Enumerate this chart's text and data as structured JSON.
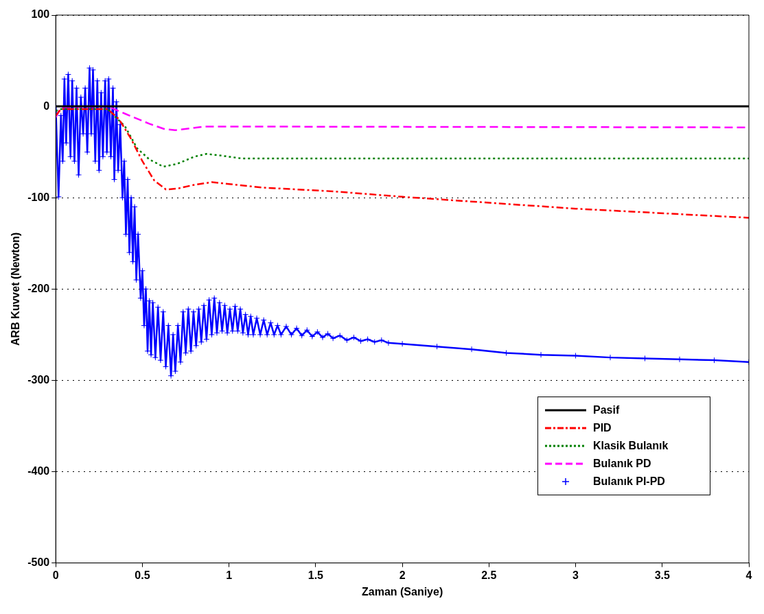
{
  "chart_data": {
    "type": "line",
    "xlabel": "Zaman (Saniye)",
    "ylabel": "ARB Kuvvet (Newton)",
    "xlim": [
      0,
      4
    ],
    "xticks": [
      0,
      0.5,
      1,
      1.5,
      2,
      2.5,
      3,
      3.5,
      4
    ],
    "ylim": [
      -500,
      100
    ],
    "yticks": [
      -500,
      -400,
      -300,
      -200,
      -100,
      0,
      100
    ],
    "grid": "y",
    "legend": "bottom right",
    "series": [
      {
        "name": "Pasif",
        "color": "#000000",
        "line_style": "solid",
        "x": [
          0,
          4
        ],
        "values": [
          0,
          0
        ]
      },
      {
        "name": "PID",
        "color": "#ff0000",
        "line_style": "dashdot",
        "x": [
          0,
          0.03,
          0.3,
          0.365,
          0.433,
          0.5,
          0.568,
          0.636,
          0.703,
          0.797,
          0.9,
          1.0,
          1.2,
          1.6,
          2,
          3,
          4
        ],
        "values": [
          -10,
          -3,
          -3,
          -14,
          -35,
          -60,
          -81,
          -91,
          -90,
          -86,
          -83,
          -85,
          -89,
          -93,
          -99,
          -112,
          -122
        ]
      },
      {
        "name": "Klasik Bulanık",
        "color": "#008000",
        "line_style": "dotted",
        "x": [
          0,
          0.03,
          0.3,
          0.4,
          0.47,
          0.54,
          0.62,
          0.7,
          0.8,
          0.87,
          0.96,
          1.07,
          1.13,
          4
        ],
        "values": [
          -5,
          -3,
          -3,
          -22,
          -46,
          -58,
          -66,
          -63,
          -55,
          -52,
          -54,
          -57,
          -57,
          -57
        ]
      },
      {
        "name": "Bulanık PD",
        "color": "#ff00ff",
        "line_style": "dashed",
        "x": [
          0,
          0.03,
          0.3,
          0.4,
          0.54,
          0.63,
          0.69,
          0.78,
          0.86,
          4
        ],
        "values": [
          -12,
          -1,
          0,
          -8,
          -19,
          -25,
          -26,
          -24,
          -22,
          -23
        ]
      },
      {
        "name": "Bulanık PI-PD",
        "color": "#0000ff",
        "line_style": "solid",
        "marker": "cross",
        "x": [
          0,
          0.016,
          0.03,
          0.04,
          0.05,
          0.06,
          0.072,
          0.085,
          0.095,
          0.108,
          0.12,
          0.132,
          0.145,
          0.158,
          0.17,
          0.182,
          0.195,
          0.205,
          0.215,
          0.228,
          0.24,
          0.25,
          0.262,
          0.272,
          0.285,
          0.295,
          0.305,
          0.318,
          0.33,
          0.338,
          0.35,
          0.36,
          0.372,
          0.385,
          0.395,
          0.405,
          0.415,
          0.425,
          0.435,
          0.445,
          0.455,
          0.465,
          0.475,
          0.49,
          0.5,
          0.51,
          0.52,
          0.53,
          0.54,
          0.55,
          0.56,
          0.575,
          0.59,
          0.605,
          0.62,
          0.635,
          0.65,
          0.665,
          0.677,
          0.69,
          0.705,
          0.72,
          0.735,
          0.75,
          0.765,
          0.78,
          0.795,
          0.81,
          0.825,
          0.84,
          0.855,
          0.87,
          0.885,
          0.9,
          0.915,
          0.93,
          0.945,
          0.96,
          0.975,
          0.99,
          1.005,
          1.02,
          1.035,
          1.05,
          1.065,
          1.08,
          1.095,
          1.11,
          1.125,
          1.14,
          1.16,
          1.18,
          1.2,
          1.22,
          1.24,
          1.26,
          1.28,
          1.3,
          1.33,
          1.36,
          1.39,
          1.42,
          1.45,
          1.48,
          1.51,
          1.54,
          1.57,
          1.6,
          1.64,
          1.68,
          1.72,
          1.76,
          1.8,
          1.84,
          1.88,
          1.92,
          2,
          2.2,
          2.4,
          2.6,
          2.8,
          3,
          3.2,
          3.4,
          3.6,
          3.8,
          4
        ],
        "values": [
          0,
          -99,
          -10,
          -60,
          30,
          -40,
          35,
          -55,
          28,
          -60,
          20,
          -75,
          10,
          -30,
          20,
          -50,
          42,
          -30,
          40,
          -60,
          28,
          -70,
          15,
          -55,
          28,
          -50,
          30,
          -55,
          20,
          -80,
          5,
          -70,
          -20,
          -100,
          -60,
          -140,
          -80,
          -160,
          -100,
          -170,
          -110,
          -190,
          -140,
          -210,
          -180,
          -240,
          -200,
          -268,
          -213,
          -272,
          -215,
          -275,
          -220,
          -278,
          -225,
          -285,
          -240,
          -295,
          -250,
          -290,
          -240,
          -280,
          -225,
          -270,
          -222,
          -268,
          -225,
          -262,
          -222,
          -258,
          -218,
          -255,
          -212,
          -250,
          -210,
          -248,
          -215,
          -246,
          -218,
          -248,
          -222,
          -246,
          -219,
          -246,
          -222,
          -248,
          -228,
          -250,
          -230,
          -250,
          -232,
          -250,
          -234,
          -250,
          -237,
          -250,
          -240,
          -250,
          -241,
          -250,
          -243,
          -251,
          -245,
          -252,
          -247,
          -253,
          -249,
          -254,
          -251,
          -256,
          -253,
          -257,
          -255,
          -258,
          -256,
          -259,
          -260,
          -263,
          -266,
          -270,
          -272,
          -273,
          -275,
          -276,
          -277,
          -278,
          -280
        ]
      }
    ]
  }
}
